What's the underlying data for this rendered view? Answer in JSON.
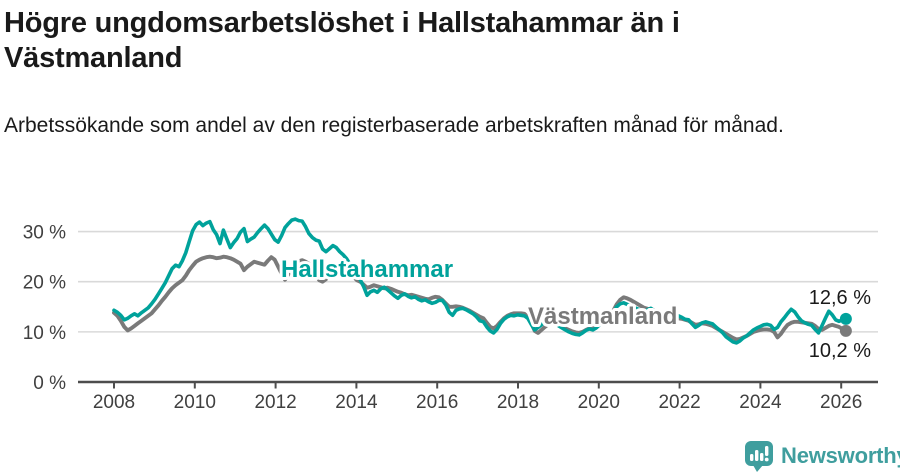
{
  "header": {
    "title": "Högre ungdomsarbetslöshet i Hallstahammar än i Västmanland",
    "subtitle": "Arbetssökande som andel av den registerbaserade arbetskraften månad för månad."
  },
  "chart_data": {
    "type": "line",
    "title": "Högre ungdomsarbetslöshet i Hallstahammar än i Västmanland",
    "subtitle": "Arbetssökande som andel av den registerbaserade arbetskraften månad för månad.",
    "unit": "%",
    "x_start_year": 2008,
    "points_per_year": 12,
    "xticks": [
      2008,
      2010,
      2012,
      2014,
      2016,
      2018,
      2020,
      2022,
      2024,
      2026
    ],
    "yticks": [
      0,
      10,
      20,
      30
    ],
    "ytick_labels": [
      "0 %",
      "10 %",
      "20 %",
      "30 %"
    ],
    "ylim": [
      0,
      34
    ],
    "grid": "horizontal",
    "grid_color": "#d9d9d9",
    "axis_color": "#4d4d4d",
    "legend_position": "inline-labels",
    "series": [
      {
        "name": "Hallstahammar",
        "color": "#00a29b",
        "end_label": "12,6 %",
        "end_value": 12.6,
        "values": [
          14.3,
          13.9,
          13.3,
          12.4,
          12.7,
          13.2,
          13.6,
          13.2,
          13.8,
          14.3,
          14.8,
          15.6,
          16.5,
          17.6,
          18.7,
          19.8,
          21.2,
          22.6,
          23.3,
          23.0,
          24.2,
          25.8,
          28.0,
          30.2,
          31.4,
          31.9,
          31.2,
          31.7,
          32.0,
          30.4,
          29.4,
          27.6,
          30.3,
          28.5,
          26.8,
          27.8,
          28.6,
          29.9,
          30.6,
          28.0,
          28.5,
          28.9,
          29.8,
          30.6,
          31.3,
          30.6,
          29.5,
          28.4,
          27.9,
          29.2,
          30.8,
          31.6,
          32.3,
          32.5,
          32.2,
          32.1,
          31.0,
          29.6,
          28.8,
          28.3,
          28.1,
          26.5,
          26.0,
          26.6,
          27.2,
          26.8,
          26.0,
          25.4,
          24.6,
          23.5,
          22.4,
          21.3,
          20.4,
          19.0,
          17.3,
          18.0,
          18.3,
          17.9,
          18.6,
          18.9,
          18.4,
          17.8,
          17.2,
          16.7,
          17.3,
          17.6,
          17.1,
          16.8,
          17.0,
          16.5,
          16.2,
          16.4,
          16.0,
          15.7,
          15.9,
          16.3,
          16.3,
          15.4,
          13.9,
          13.3,
          14.3,
          14.6,
          14.7,
          14.4,
          14.0,
          13.6,
          13.0,
          12.2,
          12.0,
          11.0,
          10.2,
          9.8,
          10.5,
          11.7,
          12.5,
          13.0,
          13.3,
          13.2,
          13.4,
          13.3,
          13.2,
          12.7,
          11.5,
          10.4,
          10.9,
          11.4,
          12.0,
          12.4,
          12.1,
          11.6,
          11.2,
          10.8,
          10.4,
          10.0,
          9.7,
          9.5,
          9.4,
          9.8,
          10.3,
          10.6,
          10.4,
          10.8,
          11.4,
          12.0,
          12.6,
          13.0,
          13.8,
          15.0,
          15.6,
          15.8,
          15.5,
          15.2,
          14.9,
          14.6,
          14.3,
          14.0,
          14.4,
          14.7,
          14.2,
          13.7,
          13.3,
          13.0,
          12.8,
          12.9,
          13.0,
          13.2,
          12.9,
          12.5,
          12.4,
          11.6,
          10.9,
          11.3,
          11.8,
          12.0,
          11.8,
          11.6,
          11.0,
          10.4,
          9.8,
          9.0,
          8.5,
          8.0,
          7.8,
          8.2,
          8.8,
          9.2,
          9.8,
          10.4,
          10.8,
          11.1,
          11.4,
          11.5,
          11.3,
          10.5,
          10.9,
          12.0,
          12.8,
          13.7,
          14.5,
          14.0,
          13.0,
          12.2,
          11.8,
          11.5,
          11.3,
          10.5,
          9.8,
          11.2,
          12.7,
          14.1,
          13.4,
          12.4,
          12.1,
          12.4,
          12.6
        ]
      },
      {
        "name": "Västmanland",
        "color": "#7a7a7a",
        "end_label": "10,2 %",
        "end_value": 10.2,
        "values": [
          13.8,
          13.2,
          12.2,
          11.0,
          10.3,
          10.7,
          11.2,
          11.7,
          12.2,
          12.7,
          13.2,
          13.7,
          14.5,
          15.3,
          16.2,
          17.0,
          17.9,
          18.7,
          19.3,
          19.8,
          20.3,
          21.2,
          22.3,
          23.2,
          24.0,
          24.4,
          24.7,
          24.9,
          25.0,
          24.9,
          24.7,
          24.8,
          25.0,
          24.9,
          24.7,
          24.4,
          24.0,
          23.6,
          22.3,
          23.0,
          23.5,
          24.0,
          23.8,
          23.6,
          23.4,
          24.2,
          24.9,
          24.4,
          23.0,
          21.6,
          20.4,
          21.5,
          22.8,
          23.6,
          24.1,
          24.3,
          24.0,
          23.6,
          22.8,
          21.5,
          20.3,
          20.0,
          20.5,
          21.8,
          22.9,
          23.3,
          23.2,
          23.0,
          22.6,
          21.9,
          21.0,
          20.3,
          20.0,
          19.4,
          18.8,
          19.0,
          19.3,
          19.1,
          18.9,
          18.7,
          18.8,
          18.6,
          18.3,
          18.0,
          17.8,
          17.5,
          17.3,
          17.4,
          17.2,
          17.0,
          16.8,
          16.6,
          16.5,
          16.8,
          17.0,
          16.9,
          16.4,
          15.7,
          15.0,
          15.0,
          15.1,
          15.0,
          14.8,
          14.5,
          14.2,
          13.8,
          13.4,
          13.0,
          12.7,
          11.8,
          11.0,
          10.7,
          11.2,
          12.0,
          12.7,
          13.2,
          13.5,
          13.7,
          13.7,
          13.7,
          13.6,
          13.0,
          11.8,
          10.2,
          9.8,
          10.4,
          11.0,
          11.5,
          11.8,
          11.6,
          11.3,
          11.0,
          10.7,
          10.4,
          10.1,
          9.9,
          9.8,
          10.0,
          10.4,
          10.7,
          10.9,
          11.2,
          11.8,
          12.4,
          13.0,
          13.5,
          14.2,
          15.5,
          16.4,
          16.9,
          16.7,
          16.4,
          16.0,
          15.6,
          15.2,
          14.8,
          14.6,
          14.5,
          14.3,
          14.0,
          13.7,
          13.4,
          13.1,
          12.9,
          12.8,
          12.7,
          12.6,
          12.4,
          12.2,
          11.8,
          11.4,
          11.5,
          11.7,
          11.6,
          11.4,
          11.2,
          10.8,
          10.4,
          10.0,
          9.6,
          9.2,
          8.8,
          8.5,
          8.6,
          8.9,
          9.2,
          9.6,
          10.0,
          10.2,
          10.4,
          10.5,
          10.5,
          10.4,
          10.0,
          8.9,
          9.6,
          10.6,
          11.4,
          11.8,
          12.0,
          12.0,
          11.9,
          11.8,
          11.7,
          11.6,
          11.2,
          10.6,
          10.4,
          10.8,
          11.2,
          11.4,
          11.2,
          11.0,
          10.6,
          10.2
        ]
      }
    ]
  },
  "footer": {
    "brand": "Newsworthy",
    "brand_color": "#3f9e9e"
  }
}
